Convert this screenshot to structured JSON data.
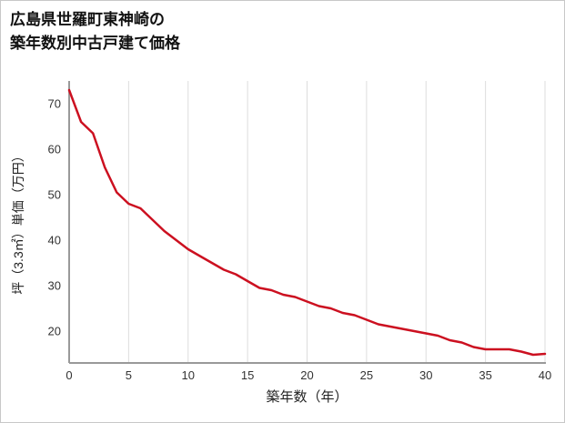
{
  "page": {
    "title_line1": "広島県世羅町東神崎の",
    "title_line2": "築年数別中古戸建て価格"
  },
  "chart_data": {
    "type": "line",
    "title": "広島県世羅町東神崎の築年数別中古戸建て価格",
    "xlabel": "築年数（年）",
    "ylabel": "坪（3.3㎡）単価（万円）",
    "x": [
      0,
      1,
      2,
      3,
      4,
      5,
      6,
      7,
      8,
      9,
      10,
      11,
      12,
      13,
      14,
      15,
      16,
      17,
      18,
      19,
      20,
      21,
      22,
      23,
      24,
      25,
      26,
      27,
      28,
      29,
      30,
      31,
      32,
      33,
      34,
      35,
      36,
      37,
      38,
      39,
      40
    ],
    "values": [
      73,
      66,
      63.5,
      56,
      50.5,
      48,
      47,
      44.5,
      42,
      40,
      38,
      36.5,
      35,
      33.5,
      32.5,
      31,
      29.5,
      29,
      28,
      27.5,
      26.5,
      25.5,
      25,
      24,
      23.5,
      22.5,
      21.5,
      21,
      20.5,
      20,
      19.5,
      19,
      18,
      17.5,
      16.5,
      16,
      16,
      16,
      15.5,
      14.8,
      15
    ],
    "xlim": [
      0,
      40
    ],
    "ylim": [
      13,
      75
    ],
    "x_ticks": [
      0,
      5,
      10,
      15,
      20,
      25,
      30,
      35,
      40
    ],
    "y_ticks": [
      20,
      30,
      40,
      50,
      60,
      70
    ],
    "grid": "vertical-only",
    "legend": "none",
    "line_color": "#cc1020",
    "axis_color": "#999999",
    "grid_color": "#dddddd",
    "tick_label_color": "#333333",
    "axis_title_color": "#222222"
  }
}
